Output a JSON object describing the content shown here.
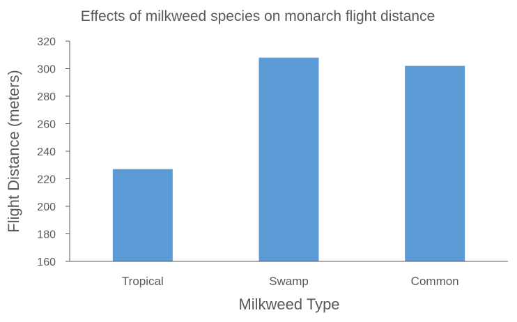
{
  "chart_data": {
    "type": "bar",
    "title": "Effects of milkweed species on monarch flight distance",
    "xlabel": "Milkweed Type",
    "ylabel": "Flight Distance (meters)",
    "categories": [
      "Tropical",
      "Swamp",
      "Common"
    ],
    "values": [
      227,
      308,
      302
    ],
    "ylim": [
      160,
      320
    ],
    "yticks": [
      "160",
      "180",
      "200",
      "220",
      "240",
      "260",
      "280",
      "300",
      "320"
    ],
    "grid": false,
    "legend": "none",
    "bar_color": "#5b9bd5"
  }
}
